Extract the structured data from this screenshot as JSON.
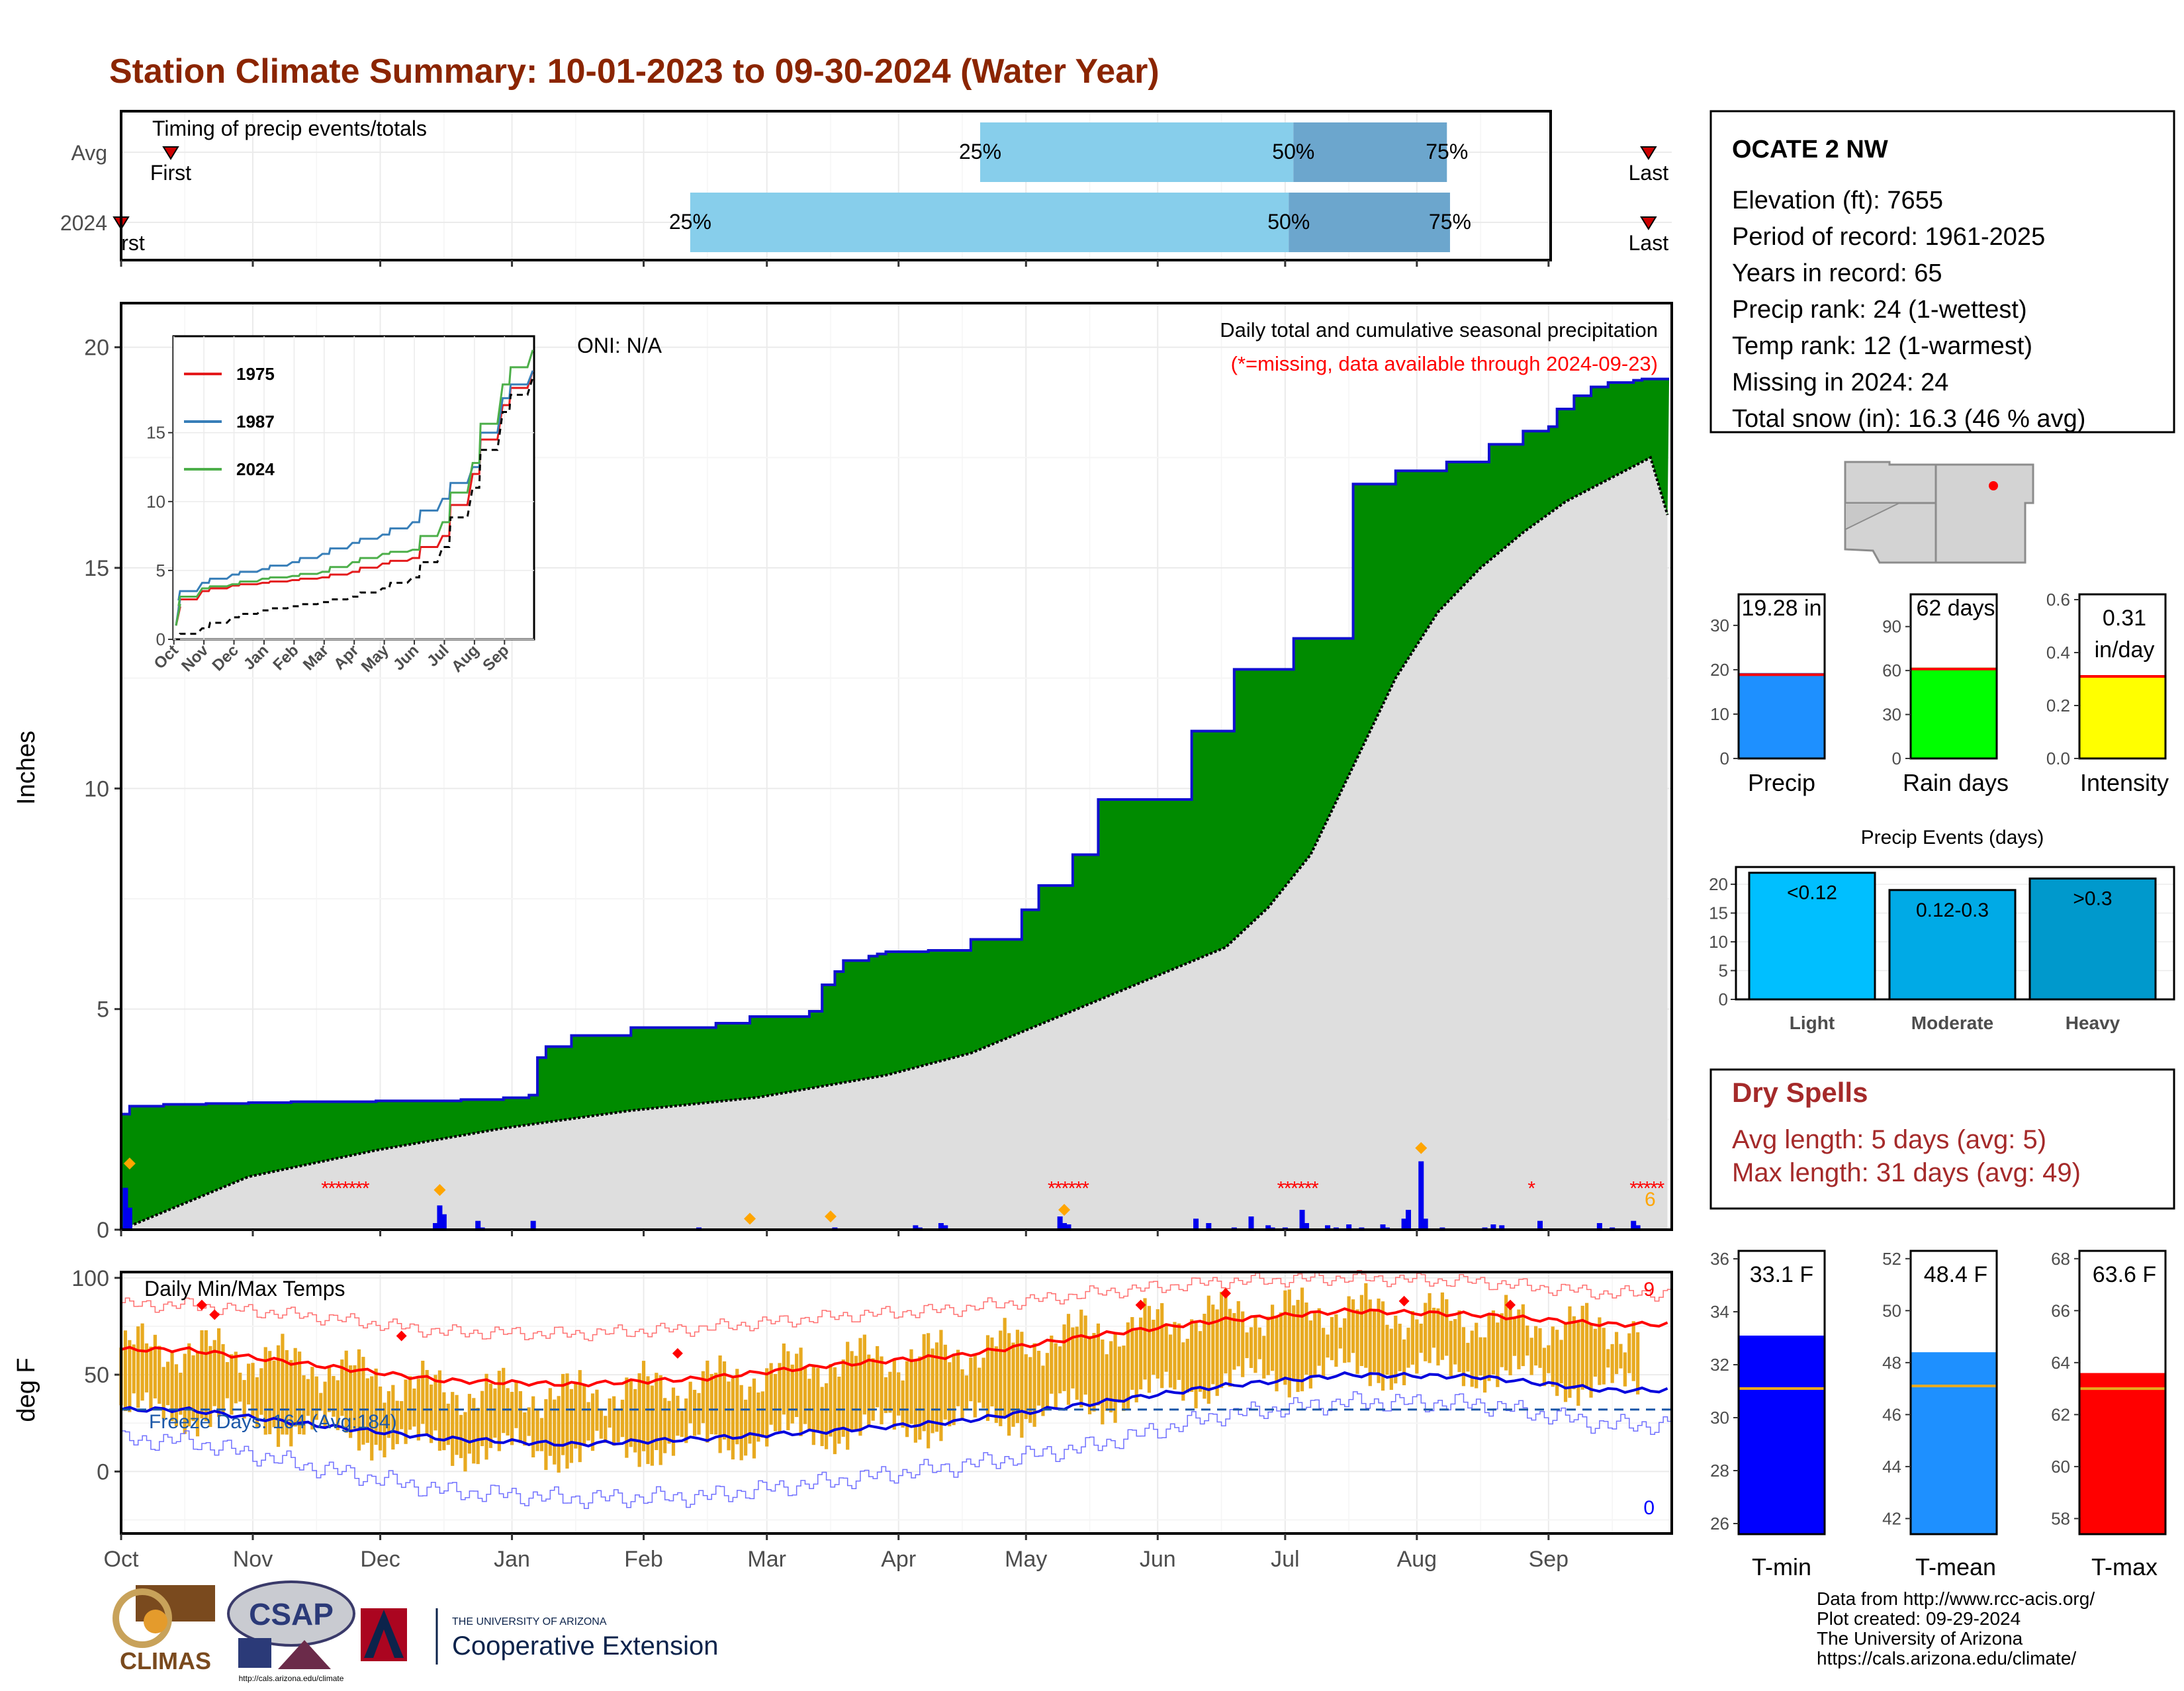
{
  "title": "Station Climate Summary: 10-01-2023 to 09-30-2024 (Water Year)",
  "timing": {
    "label": "Timing of precip events/totals",
    "rows": [
      {
        "name": "Avg",
        "first": "First",
        "last": "Last",
        "p25": "25%",
        "p50": "50%",
        "p75": "75%",
        "first_frac": 0.032,
        "last_frac": 0.985,
        "p25_frac": 0.554,
        "p50_frac": 0.756,
        "p75_frac": 0.855
      },
      {
        "name": "2024",
        "first": "rst",
        "last": "Last",
        "p25": "25%",
        "p50": "50%",
        "p75": "75%",
        "first_frac": 0.0,
        "last_frac": 0.985,
        "p25_frac": 0.367,
        "p50_frac": 0.753,
        "p75_frac": 0.857
      }
    ]
  },
  "precip_panel": {
    "ylabel": "Inches",
    "annotation": "Daily total and cumulative seasonal precipitation",
    "missing_note": "(*=missing, data available through 2024-09-23)",
    "oni": "ONI: N/A",
    "corner_count": "6"
  },
  "temp_panel": {
    "ylabel": "deg F",
    "title": "Daily Min/Max Temps",
    "freeze_days": "Freeze Days: 164 (Avg:184)",
    "record_highs": "9",
    "record_lows": "0"
  },
  "months": [
    "Oct",
    "Nov",
    "Dec",
    "Jan",
    "Feb",
    "Mar",
    "Apr",
    "May",
    "Jun",
    "Jul",
    "Aug",
    "Sep"
  ],
  "station": {
    "name": "OCATE 2 NW",
    "lines": [
      "Elevation (ft): 7655",
      "Period of record: 1961-2025",
      "Years in record: 65",
      "Precip rank: 24 (1-wettest)",
      "Temp rank: 12 (1-warmest)",
      "Missing in 2024: 24",
      "Total snow (in): 16.3 (46 % avg)"
    ]
  },
  "precip_bars": [
    {
      "label": "Precip",
      "value_text": "19.28 in",
      "value": 19.28,
      "avg": 18.9,
      "ymax": 37,
      "ticks": [
        0,
        10,
        20,
        30
      ],
      "color": "#1e90ff"
    },
    {
      "label": "Rain days",
      "value_text": "62 days",
      "value": 62,
      "avg": 61,
      "ymax": 112,
      "ticks": [
        0,
        30,
        60,
        90
      ],
      "color": "#00ff00"
    },
    {
      "label": "Intensity",
      "value_text": "0.31 in/day",
      "value": 0.31,
      "avg": 0.31,
      "ymax": 0.62,
      "ticks": [
        0.0,
        0.2,
        0.4,
        0.6
      ],
      "color": "#ffff00"
    }
  ],
  "precip_events": {
    "title": "Precip Events (days)",
    "ticks": [
      0,
      5,
      10,
      15,
      20
    ],
    "ymax": 23,
    "bars": [
      {
        "category": "Light",
        "label": "<0.12",
        "value": 22,
        "color": "#00bfff"
      },
      {
        "category": "Moderate",
        "label": "0.12-0.3",
        "value": 19,
        "color": "#00aae6"
      },
      {
        "category": "Heavy",
        "label": ">0.3",
        "value": 21,
        "color": "#0099cc"
      }
    ]
  },
  "dry_spells": {
    "title": "Dry Spells",
    "avg": "Avg length: 5 days (avg: 5)",
    "max": "Max length: 31 days (avg: 49)"
  },
  "temp_bars": [
    {
      "label": "T-min",
      "value_text": "33.1 F",
      "value": 33.1,
      "avg": 31.1,
      "ymin": 25.6,
      "ymax": 36.3,
      "ticks": [
        26,
        28,
        30,
        32,
        34,
        36
      ],
      "color": "#0000ff"
    },
    {
      "label": "T-mean",
      "value_text": "48.4 F",
      "value": 48.4,
      "avg": 47.1,
      "ymin": 41.4,
      "ymax": 52.3,
      "ticks": [
        42,
        44,
        46,
        48,
        50,
        52
      ],
      "color": "#1e90ff"
    },
    {
      "label": "T-max",
      "value_text": "63.6 F",
      "value": 63.6,
      "avg": 63.0,
      "ymin": 57.4,
      "ymax": 68.3,
      "ticks": [
        58,
        60,
        62,
        64,
        66,
        68
      ],
      "color": "#ff0000"
    }
  ],
  "credits": [
    "Data from http://www.rcc-acis.org/",
    "Plot created: 09-29-2024",
    "The University of Arizona",
    "https://cals.arizona.edu/climate/"
  ],
  "logos": {
    "climas": "CLIMAS",
    "csap": "CSAP",
    "csap_url": "http://cals.arizona.edu/climate",
    "ua_small": "THE UNIVERSITY OF ARIZONA",
    "ua_big": "Cooperative Extension"
  },
  "chart_data": [
    {
      "type": "area",
      "title": "Daily total and cumulative seasonal precipitation",
      "ylabel": "Inches",
      "ylim": [
        0,
        21
      ],
      "x_unit": "day of water year (0 = Oct 1 2023)",
      "series": [
        {
          "name": "",
          "x": [
            0,
            2,
            10,
            20,
            30,
            40,
            60,
            70,
            80,
            90,
            96,
            98,
            100,
            106,
            120,
            140,
            148,
            162,
            165,
            168,
            170,
            176,
            178,
            180,
            190,
            200,
            212,
            216,
            224,
            230,
            252,
            262,
            276,
            290,
            300,
            312,
            322,
            330,
            336,
            338,
            342,
            346,
            350,
            356,
            358,
            360,
            364
          ],
          "y": [
            2.62,
            2.8,
            2.84,
            2.86,
            2.88,
            2.9,
            2.92,
            2.92,
            2.95,
            2.99,
            3.05,
            3.9,
            4.15,
            4.4,
            4.58,
            4.68,
            4.83,
            4.95,
            5.55,
            5.85,
            6.1,
            6.2,
            6.25,
            6.3,
            6.33,
            6.58,
            7.25,
            7.8,
            8.5,
            9.75,
            11.3,
            12.7,
            13.4,
            16.9,
            17.2,
            17.4,
            17.8,
            18.1,
            18.2,
            18.6,
            18.9,
            19.1,
            19.2,
            19.25,
            19.28,
            19.28,
            19.28
          ]
        },
        {
          "name": "",
          "x": [
            0,
            30,
            60,
            90,
            120,
            150,
            180,
            200,
            220,
            240,
            260,
            270,
            280,
            290,
            300,
            310,
            320,
            330,
            340,
            350,
            360,
            364
          ],
          "y": [
            0.0,
            1.2,
            1.8,
            2.3,
            2.7,
            3.0,
            3.5,
            4.0,
            4.8,
            5.6,
            6.4,
            7.3,
            8.5,
            10.5,
            12.5,
            14.0,
            15.0,
            15.8,
            16.5,
            17.0,
            17.5,
            16.2
          ]
        }
      ]
    },
    {
      "type": "line",
      "title": "",
      "ylim": [
        0,
        22
      ],
      "categories": [
        "Oct",
        "Nov",
        "Dec",
        "Jan",
        "Feb",
        "Mar",
        "Apr",
        "May",
        "Jun",
        "Jul",
        "Aug",
        "Sep"
      ],
      "series": [
        {
          "name": "1975",
          "values": [
            3.5,
            3.9,
            4.1,
            4.3,
            4.5,
            4.9,
            5.5,
            5.9,
            7.5,
            12.0,
            17.0,
            19.5
          ]
        },
        {
          "name": "1987",
          "values": [
            4.1,
            4.7,
            5.1,
            5.6,
            6.2,
            7.0,
            7.6,
            8.5,
            10.2,
            12.5,
            17.5,
            19.5
          ]
        },
        {
          "name": "2024",
          "values": [
            3.7,
            4.0,
            4.4,
            4.6,
            4.9,
            5.6,
            6.2,
            6.5,
            8.5,
            12.8,
            18.5,
            21.0
          ]
        },
        {
          "name": "",
          "values": [
            0.8,
            1.6,
            2.1,
            2.4,
            2.7,
            3.1,
            3.7,
            4.5,
            6.7,
            11.0,
            16.5,
            19.0
          ]
        }
      ]
    },
    {
      "type": "line",
      "title": "Daily Min/Max Temps",
      "ylabel": "deg F",
      "ylim": [
        -32,
        103
      ],
      "categories": [
        "Oct",
        "Nov",
        "Dec",
        "Jan",
        "Feb",
        "Mar",
        "Apr",
        "May",
        "Jun",
        "Jul",
        "Aug",
        "Sep"
      ],
      "series": [
        {
          "name": "",
          "values": [
            63,
            55,
            47,
            45,
            48,
            55,
            60,
            70,
            78,
            83,
            81,
            76
          ]
        },
        {
          "name": "",
          "values": [
            32,
            24,
            17,
            14,
            17,
            21,
            26,
            35,
            44,
            50,
            49,
            42
          ]
        },
        {
          "name": "",
          "values": [
            86,
            80,
            72,
            71,
            74,
            80,
            84,
            92,
            98,
            100,
            98,
            92
          ]
        },
        {
          "name": "",
          "values": [
            16,
            2,
            -10,
            -14,
            -13,
            -5,
            3,
            13,
            29,
            36,
            35,
            24
          ]
        },
        {
          "name": "",
          "values": [
            64,
            55,
            42,
            40,
            46,
            57,
            62,
            72,
            82,
            84,
            79,
            74
          ]
        },
        {
          "name": "",
          "values": [
            30,
            22,
            12,
            10,
            14,
            20,
            25,
            34,
            46,
            52,
            52,
            43
          ]
        }
      ]
    },
    {
      "type": "bar",
      "title": "Precip Events (days)",
      "categories": [
        "Light",
        "Moderate",
        "Heavy"
      ],
      "values": [
        22,
        19,
        21
      ],
      "ylim": [
        0,
        23
      ]
    }
  ]
}
